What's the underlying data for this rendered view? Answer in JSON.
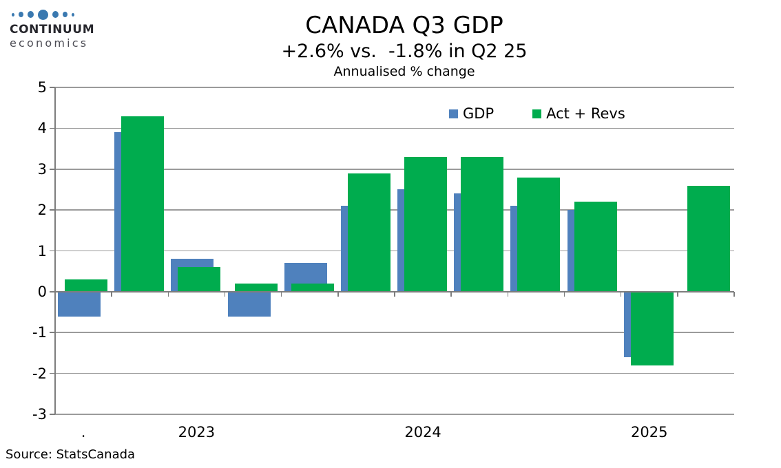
{
  "logo": {
    "brand": "CONTINUUM",
    "sub": "economics",
    "dots_color": "#3a79b0"
  },
  "header": {
    "title": "CANADA Q3 GDP",
    "subtitle": "+2.6% vs.  -1.8% in Q2 25",
    "note": "Annualised % change"
  },
  "legend": [
    {
      "label": "GDP",
      "color": "#4f81bd"
    },
    {
      "label": "Act + Revs",
      "color": "#00ac4e"
    }
  ],
  "footer": {
    "source": "Source: StatsCanada"
  },
  "chart_data": {
    "type": "bar",
    "title": "CANADA Q3 GDP",
    "subtitle": "+2.6% vs.  -1.8% in Q2 25",
    "axis_note": "Annualised % change",
    "categories_count": 12,
    "series": [
      {
        "name": "GDP",
        "color": "#4f81bd",
        "values": [
          -0.6,
          3.9,
          0.8,
          -0.6,
          0.7,
          2.1,
          2.5,
          2.4,
          2.1,
          2.0,
          -1.6,
          null
        ]
      },
      {
        "name": "Act + Revs",
        "color": "#00ac4e",
        "values": [
          0.3,
          4.3,
          0.6,
          0.2,
          0.2,
          2.9,
          3.3,
          3.3,
          2.8,
          2.2,
          -1.8,
          2.6
        ]
      }
    ],
    "x_tick_labels": [
      {
        "label": ".",
        "category_index": 0
      },
      {
        "label": "2023",
        "category_index": 2
      },
      {
        "label": "2024",
        "category_index": 6
      },
      {
        "label": "2025",
        "category_index": 10
      }
    ],
    "y_axis": {
      "min": -3,
      "max": 5,
      "step": 1
    },
    "grid": true,
    "legend_position": "top-right-inset",
    "source": "Source: StatsCanada"
  }
}
